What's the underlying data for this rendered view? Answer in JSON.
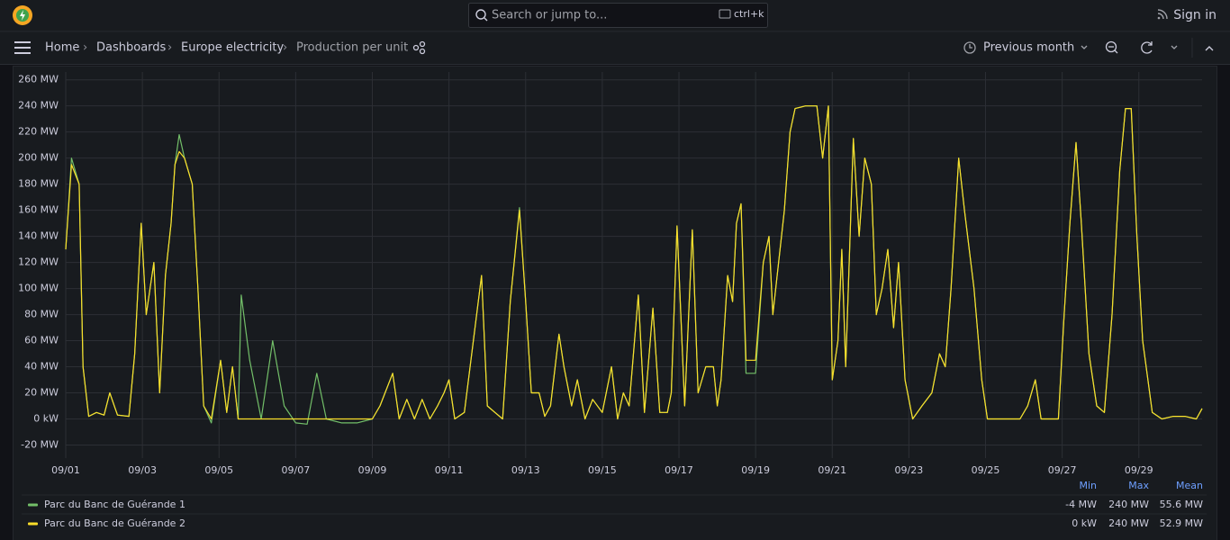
{
  "header": {
    "search_placeholder": "Search or jump to...",
    "search_shortcut": "ctrl+k",
    "sign_in": "Sign in"
  },
  "breadcrumbs": [
    "Home",
    "Dashboards",
    "Europe electricity",
    "Production per unit"
  ],
  "time_range": "Previous month",
  "chart_data": {
    "type": "line",
    "grid": true,
    "xlim": [
      1,
      30.65
    ],
    "ylim": [
      -30,
      266
    ],
    "xticks": [
      {
        "value": 1,
        "label": "09/01"
      },
      {
        "value": 3,
        "label": "09/03"
      },
      {
        "value": 5,
        "label": "09/05"
      },
      {
        "value": 7,
        "label": "09/07"
      },
      {
        "value": 9,
        "label": "09/09"
      },
      {
        "value": 11,
        "label": "09/11"
      },
      {
        "value": 13,
        "label": "09/13"
      },
      {
        "value": 15,
        "label": "09/15"
      },
      {
        "value": 17,
        "label": "09/17"
      },
      {
        "value": 19,
        "label": "09/19"
      },
      {
        "value": 21,
        "label": "09/21"
      },
      {
        "value": 23,
        "label": "09/23"
      },
      {
        "value": 25,
        "label": "09/25"
      },
      {
        "value": 27,
        "label": "09/27"
      },
      {
        "value": 29,
        "label": "09/29"
      }
    ],
    "yticks": [
      {
        "value": -20,
        "label": "-20 MW"
      },
      {
        "value": 0,
        "label": "0 kW"
      },
      {
        "value": 20,
        "label": "20 MW"
      },
      {
        "value": 40,
        "label": "40 MW"
      },
      {
        "value": 60,
        "label": "60 MW"
      },
      {
        "value": 80,
        "label": "80 MW"
      },
      {
        "value": 100,
        "label": "100 MW"
      },
      {
        "value": 120,
        "label": "120 MW"
      },
      {
        "value": 140,
        "label": "140 MW"
      },
      {
        "value": 160,
        "label": "160 MW"
      },
      {
        "value": 180,
        "label": "180 MW"
      },
      {
        "value": 200,
        "label": "200 MW"
      },
      {
        "value": 220,
        "label": "220 MW"
      },
      {
        "value": 240,
        "label": "240 MW"
      },
      {
        "value": 260,
        "label": "260 MW"
      }
    ],
    "legend_columns": [
      "Min",
      "Max",
      "Mean"
    ],
    "x": [
      1.0,
      1.15,
      1.35,
      1.45,
      1.6,
      1.8,
      2.0,
      2.15,
      2.35,
      2.65,
      2.8,
      2.97,
      3.1,
      3.3,
      3.45,
      3.6,
      3.75,
      3.85,
      3.96,
      4.1,
      4.3,
      4.45,
      4.6,
      4.8,
      5.04,
      5.2,
      5.35,
      5.5,
      5.58,
      5.8,
      6.1,
      6.4,
      6.7,
      7.0,
      7.3,
      7.55,
      7.8,
      8.2,
      8.6,
      9.0,
      9.2,
      9.53,
      9.7,
      9.9,
      10.1,
      10.3,
      10.5,
      10.7,
      10.87,
      11.0,
      11.15,
      11.4,
      11.85,
      12.0,
      12.2,
      12.4,
      12.6,
      12.84,
      13.0,
      13.15,
      13.35,
      13.5,
      13.65,
      13.87,
      14.0,
      14.2,
      14.35,
      14.55,
      14.75,
      15.0,
      15.24,
      15.4,
      15.55,
      15.7,
      15.94,
      16.1,
      16.32,
      16.5,
      16.7,
      16.8,
      16.95,
      17.15,
      17.35,
      17.5,
      17.7,
      17.9,
      18.0,
      18.1,
      18.27,
      18.4,
      18.5,
      18.62,
      18.75,
      19.0,
      19.2,
      19.35,
      19.45,
      19.6,
      19.75,
      19.9,
      20.03,
      20.3,
      20.6,
      20.75,
      20.9,
      21.0,
      21.15,
      21.25,
      21.35,
      21.55,
      21.7,
      21.85,
      22.02,
      22.15,
      22.3,
      22.45,
      22.6,
      22.73,
      22.9,
      23.1,
      23.34,
      23.6,
      23.8,
      23.95,
      24.1,
      24.3,
      24.45,
      24.7,
      24.9,
      25.05,
      25.3,
      25.6,
      25.9,
      26.1,
      26.3,
      26.45,
      26.7,
      26.9,
      27.05,
      27.2,
      27.36,
      27.5,
      27.7,
      27.9,
      28.1,
      28.3,
      28.5,
      28.65,
      28.8,
      28.95,
      29.1,
      29.35,
      29.6,
      29.9,
      30.2,
      30.5,
      30.65
    ],
    "series": [
      {
        "name": "Parc du Banc de Guérande 1",
        "color": "#73bf69",
        "legend_values": [
          -4,
          240,
          55.6
        ],
        "legend_labels": [
          "-4 MW",
          "240 MW",
          "55.6 MW"
        ],
        "values": [
          130,
          200,
          180,
          40,
          2,
          5,
          3,
          20,
          3,
          2,
          50,
          150,
          80,
          120,
          20,
          110,
          150,
          195,
          218,
          200,
          180,
          100,
          10,
          -3,
          45,
          5,
          40,
          0,
          95,
          45,
          0,
          60,
          10,
          -3,
          -4,
          35,
          0,
          -3,
          -3,
          0,
          10,
          35,
          0,
          15,
          0,
          15,
          0,
          10,
          20,
          30,
          0,
          5,
          110,
          10,
          5,
          0,
          90,
          162,
          90,
          20,
          20,
          2,
          10,
          65,
          40,
          10,
          30,
          0,
          15,
          5,
          40,
          0,
          20,
          10,
          95,
          5,
          85,
          5,
          5,
          20,
          148,
          10,
          145,
          20,
          40,
          40,
          10,
          30,
          110,
          90,
          150,
          165,
          35,
          35,
          120,
          140,
          80,
          120,
          160,
          220,
          238,
          240,
          240,
          200,
          240,
          30,
          60,
          130,
          40,
          215,
          140,
          200,
          180,
          80,
          100,
          130,
          70,
          120,
          30,
          0,
          10,
          20,
          50,
          40,
          100,
          200,
          160,
          100,
          30,
          0,
          0,
          0,
          0,
          10,
          30,
          0,
          0,
          0,
          80,
          150,
          212,
          150,
          50,
          10,
          5,
          80,
          190,
          238,
          238,
          140,
          60,
          5,
          0,
          2,
          2,
          0,
          8
        ]
      },
      {
        "name": "Parc du Banc de Guérande 2",
        "color": "#fade2a",
        "legend_values": [
          0,
          240,
          52.9
        ],
        "legend_labels": [
          "0 kW",
          "240 MW",
          "52.9 MW"
        ],
        "values": [
          130,
          195,
          180,
          40,
          2,
          5,
          3,
          20,
          3,
          2,
          50,
          150,
          80,
          120,
          20,
          110,
          150,
          195,
          205,
          200,
          180,
          100,
          10,
          0,
          45,
          5,
          40,
          0,
          0,
          0,
          0,
          0,
          0,
          0,
          0,
          0,
          0,
          0,
          0,
          0,
          10,
          35,
          0,
          15,
          0,
          15,
          0,
          10,
          20,
          30,
          0,
          5,
          110,
          10,
          5,
          0,
          90,
          160,
          90,
          20,
          20,
          2,
          10,
          65,
          40,
          10,
          30,
          0,
          15,
          5,
          40,
          0,
          20,
          10,
          95,
          5,
          85,
          5,
          5,
          20,
          148,
          10,
          145,
          20,
          40,
          40,
          10,
          30,
          110,
          90,
          150,
          165,
          45,
          45,
          120,
          140,
          80,
          120,
          160,
          220,
          238,
          240,
          240,
          200,
          240,
          30,
          60,
          130,
          40,
          215,
          140,
          200,
          180,
          80,
          100,
          130,
          70,
          120,
          30,
          0,
          10,
          20,
          50,
          40,
          100,
          200,
          160,
          100,
          30,
          0,
          0,
          0,
          0,
          10,
          30,
          0,
          0,
          0,
          80,
          150,
          212,
          150,
          50,
          10,
          5,
          80,
          190,
          238,
          238,
          140,
          60,
          5,
          0,
          2,
          2,
          0,
          8
        ]
      }
    ]
  }
}
